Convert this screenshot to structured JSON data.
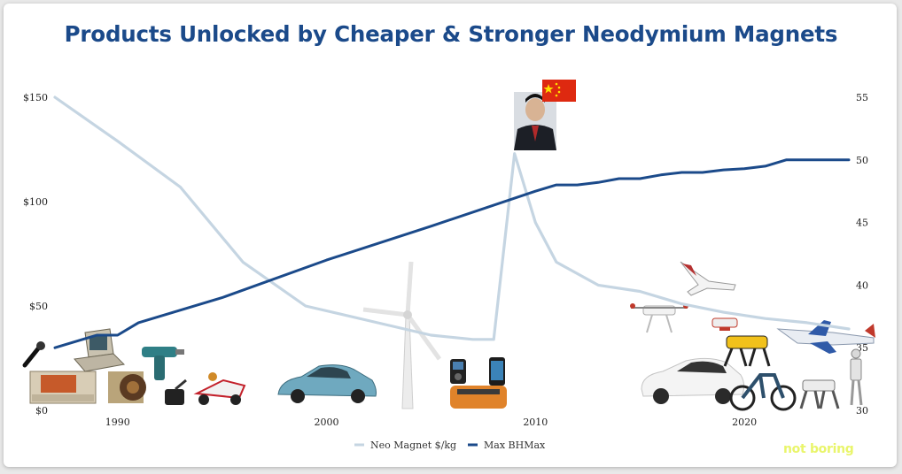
{
  "title": "Products Unlocked by Cheaper & Stronger Neodymium Magnets",
  "brand": "not boring",
  "colors": {
    "price": "#c5d5e2",
    "bhmax": "#1b4a8a",
    "title": "#1b4a8a"
  },
  "chart_data": {
    "type": "line",
    "title": "Products Unlocked by Cheaper & Stronger Neodymium Magnets",
    "x_ticks": [
      1990,
      2000,
      2010,
      2020
    ],
    "xlim": [
      1987,
      2025
    ],
    "y_left": {
      "lim": [
        0,
        150
      ],
      "ticks": [
        0,
        50,
        100,
        150
      ],
      "tick_labels": [
        "$0",
        "$50",
        "$100",
        "$150"
      ]
    },
    "y_right": {
      "lim": [
        30,
        55
      ],
      "ticks": [
        30,
        35,
        40,
        45,
        50,
        55
      ],
      "tick_labels": [
        "30",
        "35",
        "40",
        "45",
        "50",
        "55"
      ]
    },
    "legend_position": "bottom-center",
    "series": [
      {
        "name": "Neo Magnet $/kg",
        "axis": "left",
        "color": "#c5d5e2",
        "x": [
          1987,
          1990,
          1993,
          1996,
          1999,
          2002,
          2005,
          2007,
          2008,
          2009,
          2010,
          2011,
          2013,
          2015,
          2017,
          2019,
          2021,
          2023,
          2025
        ],
        "values": [
          150,
          129,
          107,
          71,
          50,
          43,
          36,
          34,
          34,
          123,
          90,
          71,
          60,
          57,
          51,
          47,
          44,
          42,
          39
        ]
      },
      {
        "name": "Max BHMax",
        "axis": "right",
        "color": "#1b4a8a",
        "x": [
          1987,
          1989,
          1990,
          1991,
          1995,
          2000,
          2005,
          2010,
          2011,
          2012,
          2013,
          2014,
          2015,
          2016,
          2017,
          2018,
          2019,
          2020,
          2021,
          2022,
          2023,
          2024,
          2025
        ],
        "values": [
          35,
          36,
          36,
          37,
          39,
          42,
          44.7,
          47.5,
          48,
          48,
          48.2,
          48.5,
          48.5,
          48.8,
          49,
          49,
          49.2,
          49.3,
          49.5,
          50,
          50,
          50,
          50
        ]
      }
    ]
  },
  "images": [
    {
      "name": "microphone-image"
    },
    {
      "name": "vintage-computer-image"
    },
    {
      "name": "laptop-image"
    },
    {
      "name": "motor-coil-image"
    },
    {
      "name": "power-drill-image"
    },
    {
      "name": "rc-buggy-image"
    },
    {
      "name": "toyota-prius-image"
    },
    {
      "name": "wind-turbine-image"
    },
    {
      "name": "ipod-image"
    },
    {
      "name": "iphone-image"
    },
    {
      "name": "roomba-image"
    },
    {
      "name": "china-leader-portrait-image"
    },
    {
      "name": "china-flag-image"
    },
    {
      "name": "fixed-wing-drone-image"
    },
    {
      "name": "quadcopter-drone-image"
    },
    {
      "name": "small-drone-image"
    },
    {
      "name": "tesla-model-3-image"
    },
    {
      "name": "robot-dog-yellow-image"
    },
    {
      "name": "ebike-image"
    },
    {
      "name": "electric-airplane-image"
    },
    {
      "name": "robot-dog-gray-image"
    },
    {
      "name": "humanoid-robot-image"
    }
  ]
}
